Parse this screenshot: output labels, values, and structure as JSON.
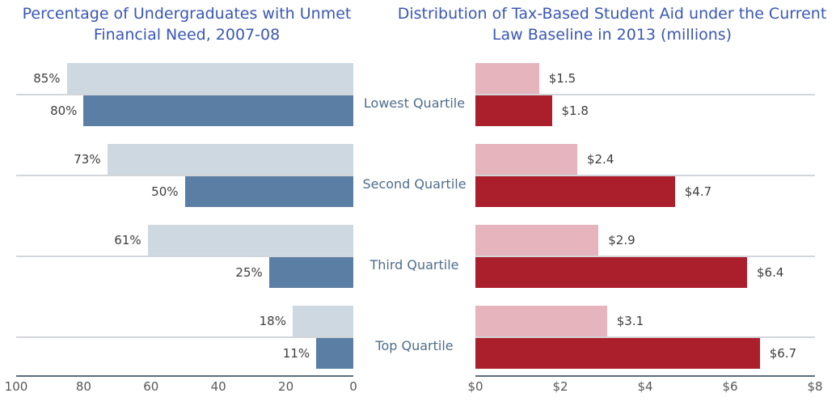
{
  "left_chart": {
    "title": "Percentage of Undergraduates with Unmet Financial Need, 2007-08",
    "axis_max": 100,
    "ticks": [
      "100",
      "80",
      "60",
      "40",
      "20",
      "0"
    ]
  },
  "right_chart": {
    "title": "Distribution of Tax-Based Student Aid under the Current Law Baseline in 2013 (millions)",
    "axis_max": 8,
    "ticks": [
      "$0",
      "$2",
      "$4",
      "$6",
      "$8"
    ]
  },
  "rows": [
    {
      "category": "Lowest Quartile",
      "left": {
        "light": {
          "value": 85,
          "label": "85%"
        },
        "dark": {
          "value": 80,
          "label": "80%"
        }
      },
      "right": {
        "light": {
          "value": 1.5,
          "label": "$1.5"
        },
        "dark": {
          "value": 1.8,
          "label": "$1.8"
        }
      }
    },
    {
      "category": "Second Quartile",
      "left": {
        "light": {
          "value": 73,
          "label": "73%"
        },
        "dark": {
          "value": 50,
          "label": "50%"
        }
      },
      "right": {
        "light": {
          "value": 2.4,
          "label": "$2.4"
        },
        "dark": {
          "value": 4.7,
          "label": "$4.7"
        }
      }
    },
    {
      "category": "Third Quartile",
      "left": {
        "light": {
          "value": 61,
          "label": "61%"
        },
        "dark": {
          "value": 25,
          "label": "25%"
        }
      },
      "right": {
        "light": {
          "value": 2.9,
          "label": "$2.9"
        },
        "dark": {
          "value": 6.4,
          "label": "$6.4"
        }
      }
    },
    {
      "category": "Top Quartile",
      "left": {
        "light": {
          "value": 18,
          "label": "18%"
        },
        "dark": {
          "value": 11,
          "label": "11%"
        }
      },
      "right": {
        "light": {
          "value": 3.1,
          "label": "$3.1"
        },
        "dark": {
          "value": 6.7,
          "label": "$6.7"
        }
      }
    }
  ],
  "colors": {
    "title_blue": "#3a57b4",
    "category_label": "#4e6d8c",
    "bar_light_blue": "#cdd8e1",
    "bar_dark_blue": "#5b7ea4",
    "bar_light_red": "#e5b4bd",
    "bar_dark_red": "#ab1e2c",
    "axis_line": "#5c6e7e",
    "separator_line": "#d2d5d9",
    "value_text": "#3d3d3d",
    "tick_text": "#575757"
  },
  "chart_data": [
    {
      "type": "bar",
      "orientation": "horizontal",
      "title": "Percentage of Undergraduates with Unmet Financial Need, 2007-08",
      "categories": [
        "Lowest Quartile",
        "Second Quartile",
        "Third Quartile",
        "Top Quartile"
      ],
      "series": [
        {
          "name": "light-blue-series",
          "values": [
            85,
            73,
            61,
            18
          ]
        },
        {
          "name": "dark-blue-series",
          "values": [
            80,
            50,
            25,
            11
          ]
        }
      ],
      "value_labels": [
        [
          "85%",
          "73%",
          "61%",
          "18%"
        ],
        [
          "80%",
          "50%",
          "25%",
          "11%"
        ]
      ],
      "xlabel": "",
      "ylabel": "",
      "xlim": [
        100,
        0
      ],
      "x_ticks": [
        100,
        80,
        60,
        40,
        20,
        0
      ],
      "axis_reversed": true,
      "grid": false,
      "legend": "none",
      "unit": "percent"
    },
    {
      "type": "bar",
      "orientation": "horizontal",
      "title": "Distribution of Tax-Based Student Aid under the Current Law Baseline in 2013 (millions)",
      "categories": [
        "Lowest Quartile",
        "Second Quartile",
        "Third Quartile",
        "Top Quartile"
      ],
      "series": [
        {
          "name": "light-red-series",
          "values": [
            1.5,
            2.4,
            2.9,
            3.1
          ]
        },
        {
          "name": "dark-red-series",
          "values": [
            1.8,
            4.7,
            6.4,
            6.7
          ]
        }
      ],
      "value_labels": [
        [
          "$1.5",
          "$2.4",
          "$2.9",
          "$3.1"
        ],
        [
          "$1.8",
          "$4.7",
          "$6.4",
          "$6.7"
        ]
      ],
      "xlabel": "",
      "ylabel": "",
      "xlim": [
        0,
        8
      ],
      "x_ticks": [
        "$0",
        "$2",
        "$4",
        "$6",
        "$8"
      ],
      "axis_reversed": false,
      "grid": false,
      "legend": "none",
      "unit": "millions of dollars"
    }
  ]
}
